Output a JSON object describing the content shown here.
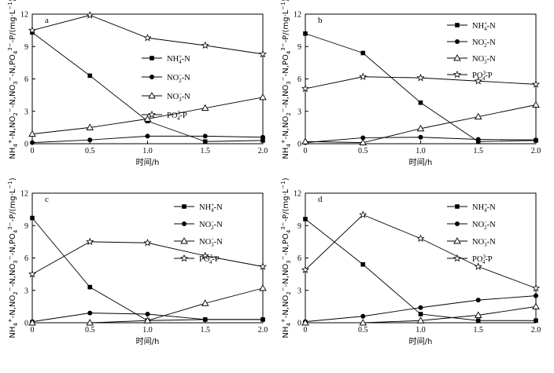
{
  "chart_data": [
    {
      "type": "line",
      "panel_label": "a",
      "xlabel": "时间/h",
      "ylabel": "NH4+-N,NO2−-N,NO3−-N,PO43−-P/(mg·L−1)",
      "xlim": [
        0,
        2.0
      ],
      "ylim": [
        0,
        12
      ],
      "xticks": [
        "0",
        "0.5",
        "1.0",
        "1.5",
        "2.0"
      ],
      "yticks": [
        "0",
        "3",
        "6",
        "9",
        "12"
      ],
      "legend_position": "right",
      "x": [
        0,
        0.5,
        1.0,
        1.5,
        2.0
      ],
      "series": [
        {
          "name": "NH4+-N",
          "values": [
            10.3,
            6.3,
            2.1,
            0.2,
            0.3
          ]
        },
        {
          "name": "NO2−-N",
          "values": [
            0.1,
            0.35,
            0.7,
            0.7,
            0.6
          ]
        },
        {
          "name": "NO3−-N",
          "values": [
            0.9,
            1.5,
            2.3,
            3.3,
            4.3
          ]
        },
        {
          "name": "PO43−-P",
          "values": [
            10.5,
            11.9,
            9.8,
            9.1,
            8.3
          ]
        }
      ]
    },
    {
      "type": "line",
      "panel_label": "b",
      "xlabel": "时间/h",
      "ylabel": "NH4+-N,NO2−-N,NO3−-N,PO43−-P/(mg·L−1)",
      "xlim": [
        0,
        2.0
      ],
      "ylim": [
        0,
        12
      ],
      "xticks": [
        "0",
        "0.5",
        "1.0",
        "1.5",
        "2.0"
      ],
      "yticks": [
        "0",
        "3",
        "6",
        "9",
        "12"
      ],
      "legend_position": "top-right",
      "x": [
        0,
        0.5,
        1.0,
        1.5,
        2.0
      ],
      "series": [
        {
          "name": "NH4+-N",
          "values": [
            10.2,
            8.4,
            3.8,
            0.2,
            0.3
          ]
        },
        {
          "name": "NO2−-N",
          "values": [
            0.1,
            0.55,
            0.6,
            0.4,
            0.35
          ]
        },
        {
          "name": "NO3−-N",
          "values": [
            0.2,
            0.1,
            1.4,
            2.5,
            3.6
          ]
        },
        {
          "name": "PO43−-P",
          "values": [
            5.1,
            6.2,
            6.1,
            5.8,
            5.5
          ]
        }
      ]
    },
    {
      "type": "line",
      "panel_label": "c",
      "xlabel": "时间/h",
      "ylabel": "NH4+-N,NO2−-N,NO3−-N,PO43−-P/(mg·L−1)",
      "xlim": [
        0,
        2.0
      ],
      "ylim": [
        0,
        12
      ],
      "xticks": [
        "0",
        "0.5",
        "1.0",
        "1.5",
        "2.0"
      ],
      "yticks": [
        "0",
        "3",
        "6",
        "9",
        "12"
      ],
      "legend_position": "top-right",
      "x": [
        0,
        0.5,
        1.0,
        1.5,
        2.0
      ],
      "series": [
        {
          "name": "NH4+-N",
          "values": [
            9.7,
            3.3,
            0.2,
            0.3,
            0.3
          ]
        },
        {
          "name": "NO2−-N",
          "values": [
            0.1,
            0.9,
            0.8,
            0.3,
            0.3
          ]
        },
        {
          "name": "NO3−-N",
          "values": [
            0.0,
            0.0,
            0.2,
            1.8,
            3.2
          ]
        },
        {
          "name": "PO43−-P",
          "values": [
            4.5,
            7.5,
            7.4,
            6.2,
            5.2
          ]
        }
      ]
    },
    {
      "type": "line",
      "panel_label": "d",
      "xlabel": "时间/h",
      "ylabel": "NH4+-N,NO2−-N,NO3−-N,PO43−-P/(mg·L−1)",
      "xlim": [
        0,
        2.0
      ],
      "ylim": [
        0,
        12
      ],
      "xticks": [
        "0",
        "0.5",
        "1.0",
        "1.5",
        "2.0"
      ],
      "yticks": [
        "0",
        "3",
        "6",
        "9",
        "12"
      ],
      "legend_position": "top-right",
      "x": [
        0,
        0.5,
        1.0,
        1.5,
        2.0
      ],
      "series": [
        {
          "name": "NH4+-N",
          "values": [
            9.6,
            5.4,
            0.8,
            0.2,
            0.2
          ]
        },
        {
          "name": "NO2−-N",
          "values": [
            0.1,
            0.6,
            1.4,
            2.1,
            2.5
          ]
        },
        {
          "name": "NO3−-N",
          "values": [
            0.0,
            0.0,
            0.2,
            0.7,
            1.5
          ]
        },
        {
          "name": "PO43−-P",
          "values": [
            4.9,
            10.0,
            7.8,
            5.2,
            3.2
          ]
        }
      ]
    }
  ],
  "legend": {
    "entries": [
      {
        "base": "NH",
        "sub": "4",
        "sup": "+",
        "suffix": "-N",
        "marker": "square"
      },
      {
        "base": "NO",
        "sub": "2",
        "sup": "−",
        "suffix": "-N",
        "marker": "circle"
      },
      {
        "base": "NO",
        "sub": "3",
        "sup": "−",
        "suffix": "-N",
        "marker": "triangle"
      },
      {
        "base": "PO",
        "sub": "4",
        "sup": "3−",
        "suffix": "-P",
        "marker": "star"
      }
    ]
  }
}
